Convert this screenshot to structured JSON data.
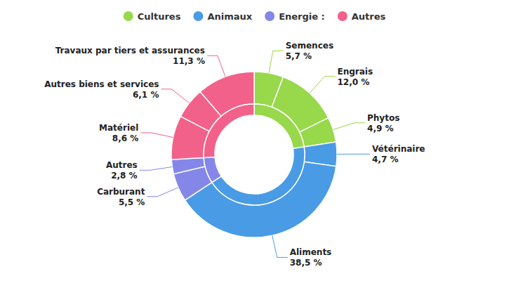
{
  "chart_data": {
    "type": "donut",
    "legend": "top",
    "data_labels": true,
    "series": [
      {
        "name": "Cultures",
        "color": "#98d84b",
        "categories": [
          "Semences",
          "Engrais",
          "Phytos"
        ],
        "values": [
          5.7,
          12.0,
          4.9
        ],
        "value_labels": [
          "5,7 %",
          "12,0 %",
          "4,9 %"
        ]
      },
      {
        "name": "Animaux",
        "color": "#4a9be6",
        "categories": [
          "Vétérinaire",
          "Aliments"
        ],
        "values": [
          4.7,
          38.5
        ],
        "value_labels": [
          "4,7 %",
          "38,5 %"
        ]
      },
      {
        "name": "Energie :",
        "color": "#8487e8",
        "categories": [
          "Carburant",
          "Autres"
        ],
        "values": [
          5.5,
          2.8
        ],
        "value_labels": [
          "5,5 %",
          "2,8 %"
        ]
      },
      {
        "name": "Autres",
        "color": "#f26189",
        "categories": [
          "Matériel",
          "Autres biens et services",
          "Travaux par tiers et assurances"
        ],
        "values": [
          8.6,
          6.1,
          11.3
        ],
        "value_labels": [
          "8,6 %",
          "6,1 %",
          "11,3 %"
        ]
      }
    ]
  }
}
